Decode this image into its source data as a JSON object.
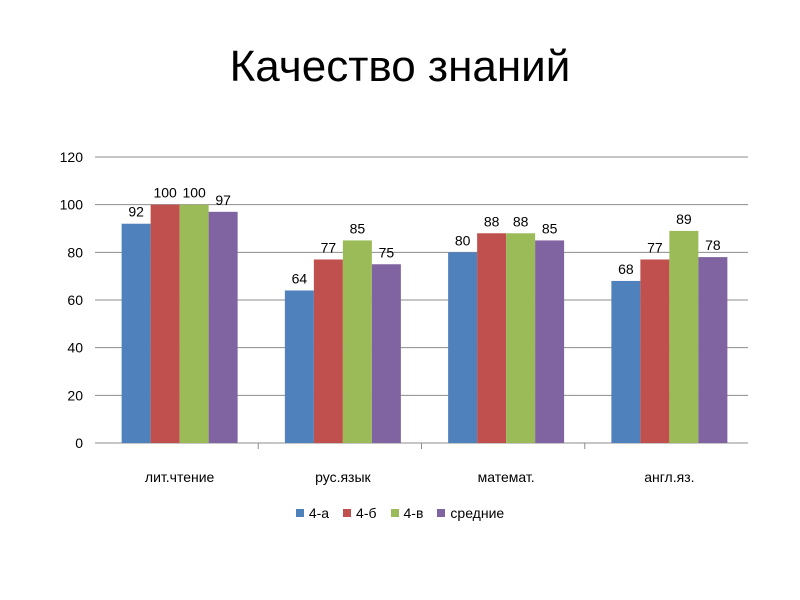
{
  "chart_data": {
    "type": "bar",
    "title": "Качество знаний",
    "categories": [
      "лит.чтение",
      "рус.язык",
      "математ.",
      "англ.яз."
    ],
    "series": [
      {
        "name": "4-а",
        "color": "#4F81BD",
        "values": [
          92,
          64,
          80,
          68
        ]
      },
      {
        "name": "4-б",
        "color": "#C0504D",
        "values": [
          100,
          77,
          88,
          77
        ]
      },
      {
        "name": "4-в",
        "color": "#9BBB59",
        "values": [
          100,
          85,
          88,
          89
        ]
      },
      {
        "name": "средние",
        "color": "#8064A2",
        "values": [
          97,
          75,
          85,
          78
        ]
      }
    ],
    "ylim": [
      0,
      120
    ],
    "yticks": [
      "0",
      "20",
      "40",
      "60",
      "80",
      "100",
      "120"
    ],
    "grid": true,
    "legend": "bottom",
    "data_labels": true
  }
}
